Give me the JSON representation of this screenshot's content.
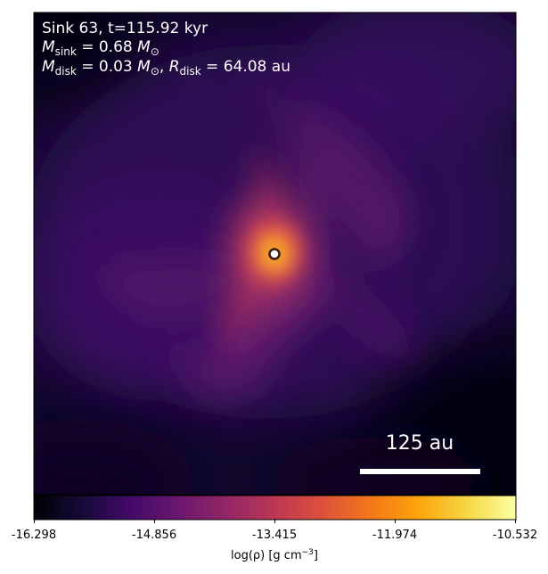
{
  "panel": {
    "line1": "Sink 63, t=115.92 kyr",
    "sink_mass": {
      "m": "M",
      "sub": "sink",
      "value": " = 0.68 ",
      "unit_m": "M",
      "unit_sub": "⊙"
    },
    "disk": {
      "m": "M",
      "m_sub": "disk",
      "m_value": " = 0.03 ",
      "unit_m": "M",
      "unit_sub": "⊙",
      "sep": ", ",
      "r": "R",
      "r_sub": "disk",
      "r_value": " = 64.08 au"
    }
  },
  "scale_bar": {
    "label": "125 au"
  },
  "colorbar": {
    "ticks": [
      "-16.298",
      "-14.856",
      "-13.415",
      "-11.974",
      "-10.532"
    ],
    "label_prefix": "log(ρ) [g cm",
    "label_exp": "−3",
    "label_suffix": "]",
    "colormap": "inferno"
  },
  "colors": {
    "background": "#0a0520",
    "clump_inner": "#f5a030",
    "clump_mid": "#c33d60",
    "sink_marker": "#ffffff"
  }
}
